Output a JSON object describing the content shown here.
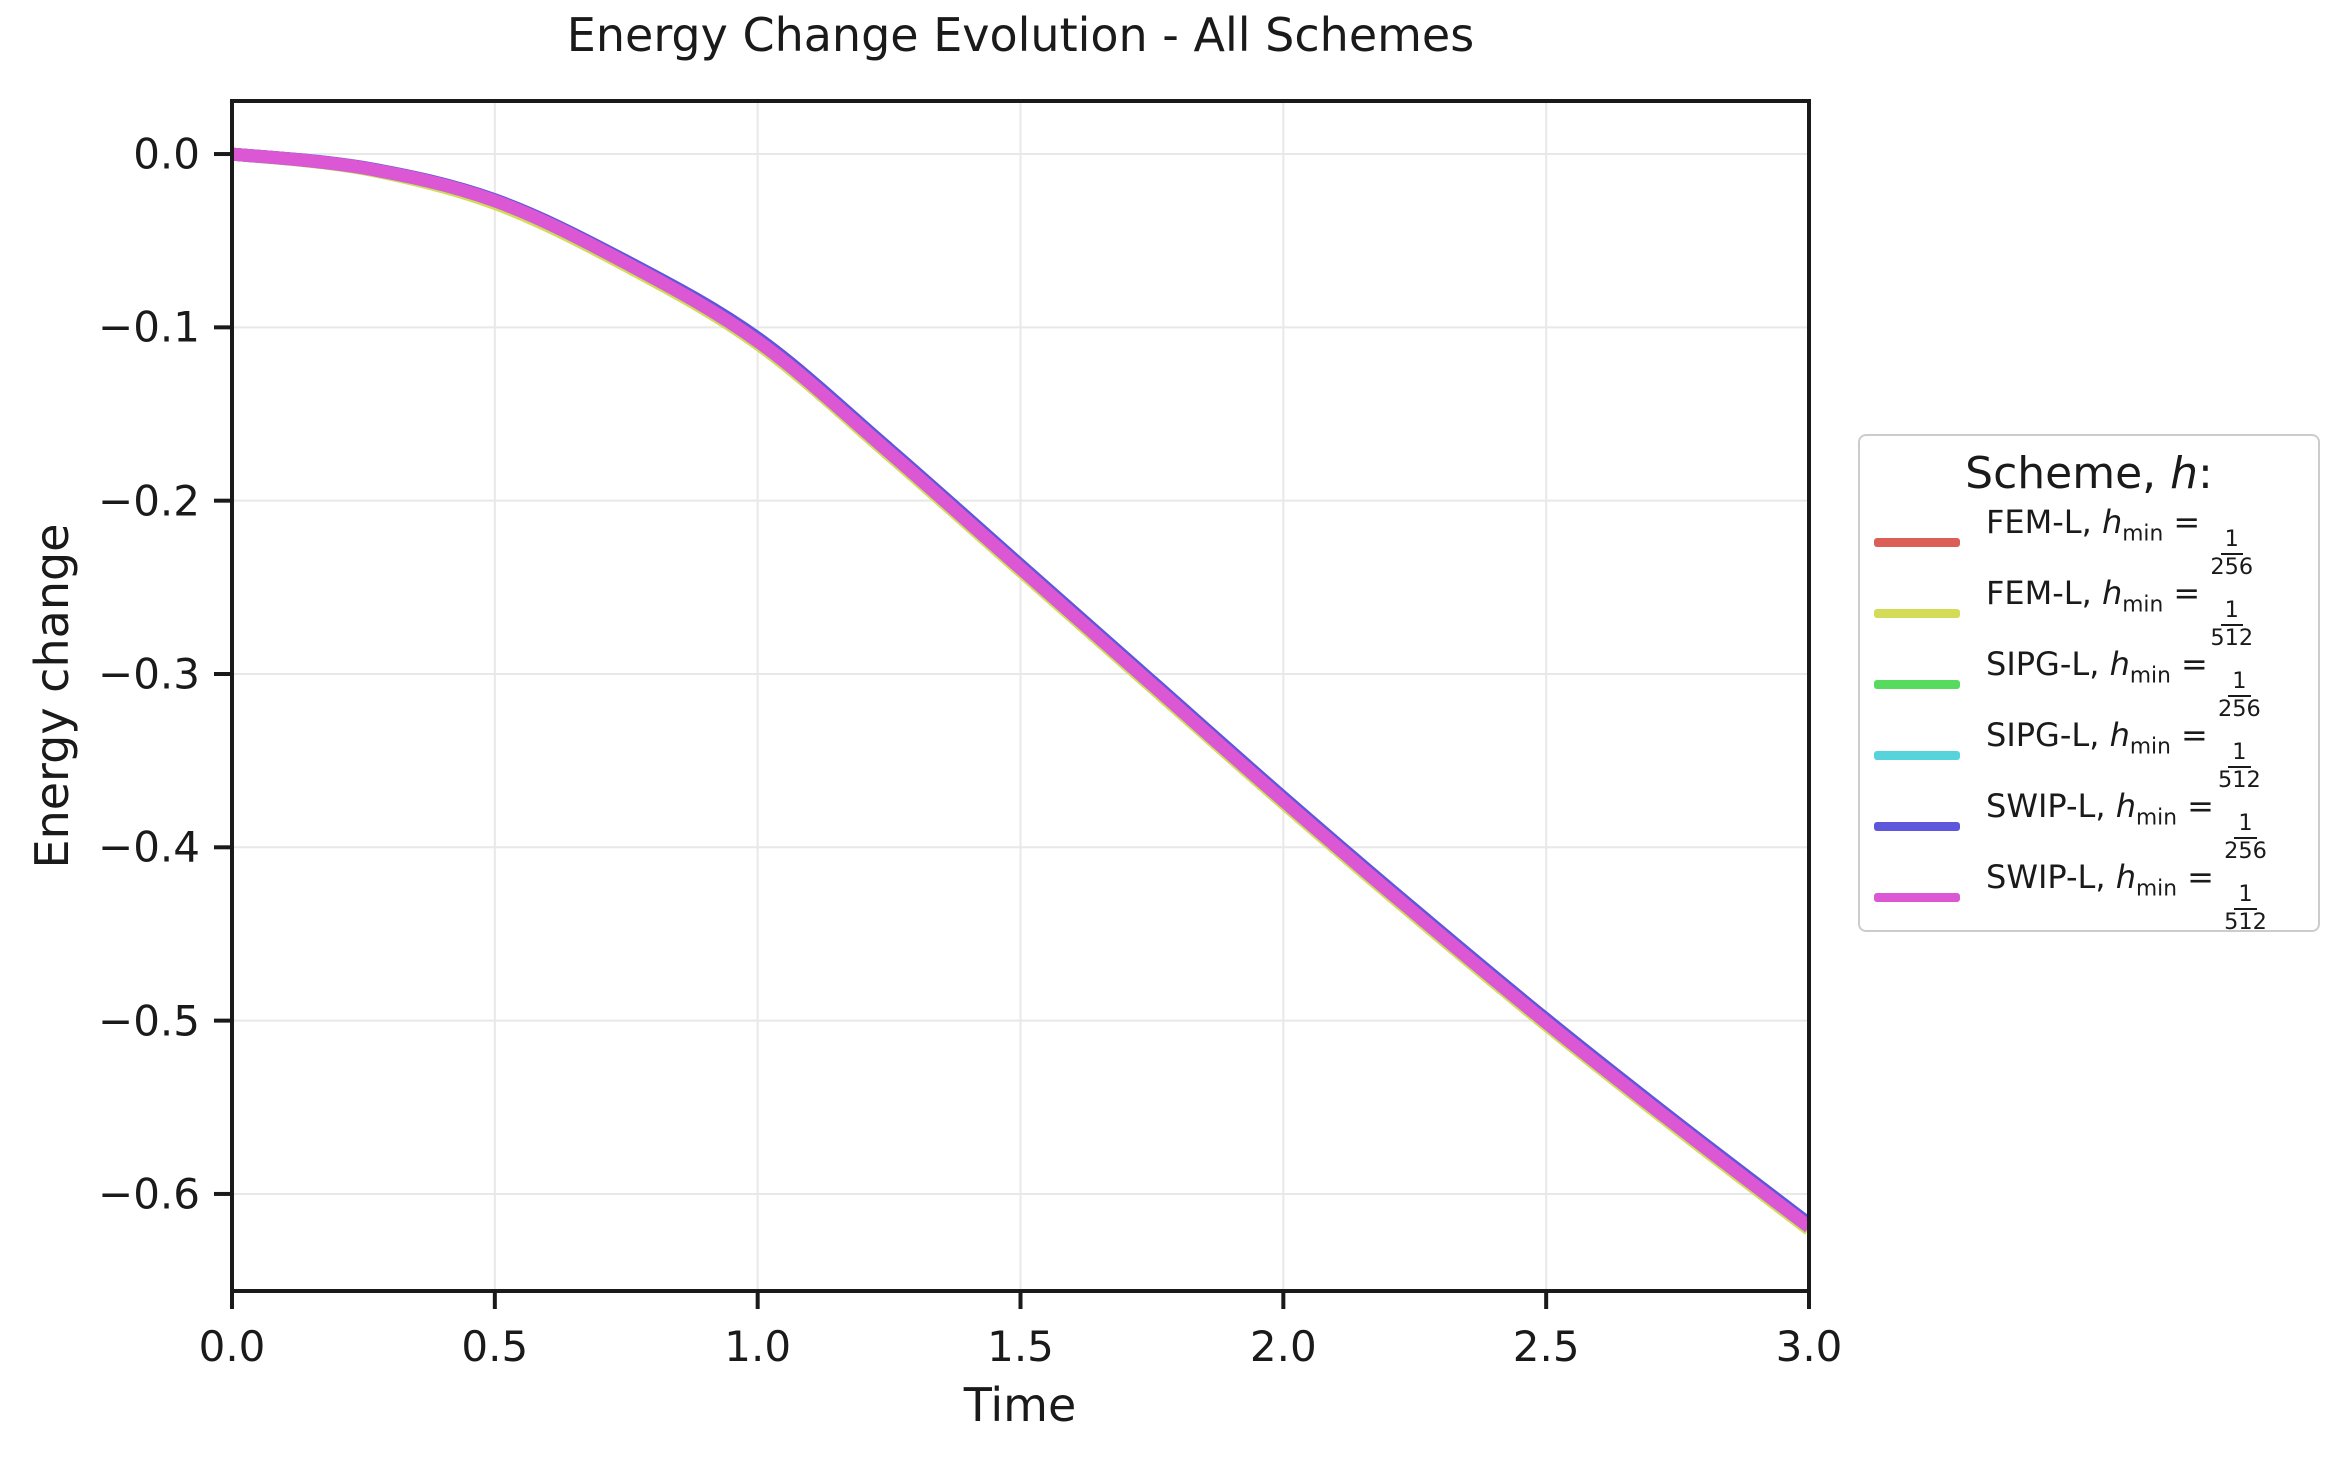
{
  "title": "Energy Change Evolution - All Schemes",
  "x_axis": {
    "label": "Time",
    "tick_labels": [
      "0.0",
      "0.5",
      "1.0",
      "1.5",
      "2.0",
      "2.5",
      "3.0"
    ],
    "tick_values": [
      0,
      0.5,
      1,
      1.5,
      2,
      2.5,
      3
    ]
  },
  "y_axis": {
    "label": "Energy change",
    "tick_labels": [
      "0.0",
      "−0.1",
      "−0.2",
      "−0.3",
      "−0.4",
      "−0.5",
      "−0.6"
    ],
    "tick_values": [
      0,
      -0.1,
      -0.2,
      -0.3,
      -0.4,
      -0.5,
      -0.6
    ]
  },
  "legend": {
    "title_prefix": "Scheme, ",
    "title_var": "h",
    "title_suffix": ":",
    "entries": [
      {
        "scheme": "FEM-L",
        "h_var": "h",
        "h_sub": "min",
        "eq": " = ",
        "frac_num": "1",
        "frac_den": "256",
        "color": "#db5f57"
      },
      {
        "scheme": "FEM-L",
        "h_var": "h",
        "h_sub": "min",
        "eq": " = ",
        "frac_num": "1",
        "frac_den": "512",
        "color": "#d3db57"
      },
      {
        "scheme": "SIPG-L",
        "h_var": "h",
        "h_sub": "min",
        "eq": " = ",
        "frac_num": "1",
        "frac_den": "256",
        "color": "#57db5f"
      },
      {
        "scheme": "SIPG-L",
        "h_var": "h",
        "h_sub": "min",
        "eq": " = ",
        "frac_num": "1",
        "frac_den": "512",
        "color": "#57d3db"
      },
      {
        "scheme": "SWIP-L",
        "h_var": "h",
        "h_sub": "min",
        "eq": " = ",
        "frac_num": "1",
        "frac_den": "256",
        "color": "#5f57db"
      },
      {
        "scheme": "SWIP-L",
        "h_var": "h",
        "h_sub": "min",
        "eq": " = ",
        "frac_num": "1",
        "frac_den": "512",
        "color": "#db57d3"
      }
    ]
  },
  "style_colors": {
    "grid": "#e8e8e8",
    "spine": "#1a1a1a",
    "tick": "#1a1a1a",
    "legend_border": "#cccccc"
  },
  "chart_data": {
    "type": "line",
    "title": "Energy Change Evolution - All Schemes",
    "xlabel": "Time",
    "ylabel": "Energy change",
    "xlim": [
      0,
      3
    ],
    "ylim": [
      -0.656,
      0.0306
    ],
    "grid": true,
    "legend_title": "Scheme, h:",
    "legend_position": "outside center-right",
    "x": [
      0,
      0.25,
      0.5,
      0.75,
      1.0,
      1.25,
      1.5,
      1.75,
      2.0,
      2.25,
      2.5,
      2.75,
      3.0
    ],
    "series": [
      {
        "name": "FEM-L, h_min = 1/256",
        "color": "#db5f57",
        "values": [
          0.0,
          -0.008,
          -0.027,
          -0.063,
          -0.108,
          -0.172,
          -0.239,
          -0.306,
          -0.373,
          -0.438,
          -0.501,
          -0.561,
          -0.619
        ]
      },
      {
        "name": "FEM-L, h_min = 1/512",
        "color": "#d3db57",
        "values": [
          0.0,
          -0.0085,
          -0.0285,
          -0.0645,
          -0.1095,
          -0.1735,
          -0.2405,
          -0.3075,
          -0.3745,
          -0.4395,
          -0.5025,
          -0.5625,
          -0.6205
        ]
      },
      {
        "name": "SIPG-L, h_min = 1/256",
        "color": "#57db5f",
        "values": [
          0.0,
          -0.008,
          -0.027,
          -0.063,
          -0.108,
          -0.172,
          -0.239,
          -0.306,
          -0.373,
          -0.438,
          -0.501,
          -0.561,
          -0.619
        ]
      },
      {
        "name": "SIPG-L, h_min = 1/512",
        "color": "#57d3db",
        "values": [
          0.0,
          -0.008,
          -0.027,
          -0.063,
          -0.108,
          -0.172,
          -0.239,
          -0.306,
          -0.373,
          -0.438,
          -0.501,
          -0.561,
          -0.619
        ]
      },
      {
        "name": "SWIP-L, h_min = 1/256",
        "color": "#5f57db",
        "values": [
          0.0,
          -0.0077,
          -0.0264,
          -0.0618,
          -0.1062,
          -0.1702,
          -0.2372,
          -0.3042,
          -0.3712,
          -0.4362,
          -0.4992,
          -0.5592,
          -0.6172
        ]
      },
      {
        "name": "SWIP-L, h_min = 1/512",
        "color": "#db57d3",
        "values": [
          0.0,
          -0.008,
          -0.027,
          -0.063,
          -0.108,
          -0.172,
          -0.239,
          -0.306,
          -0.373,
          -0.438,
          -0.501,
          -0.561,
          -0.619
        ]
      }
    ]
  }
}
